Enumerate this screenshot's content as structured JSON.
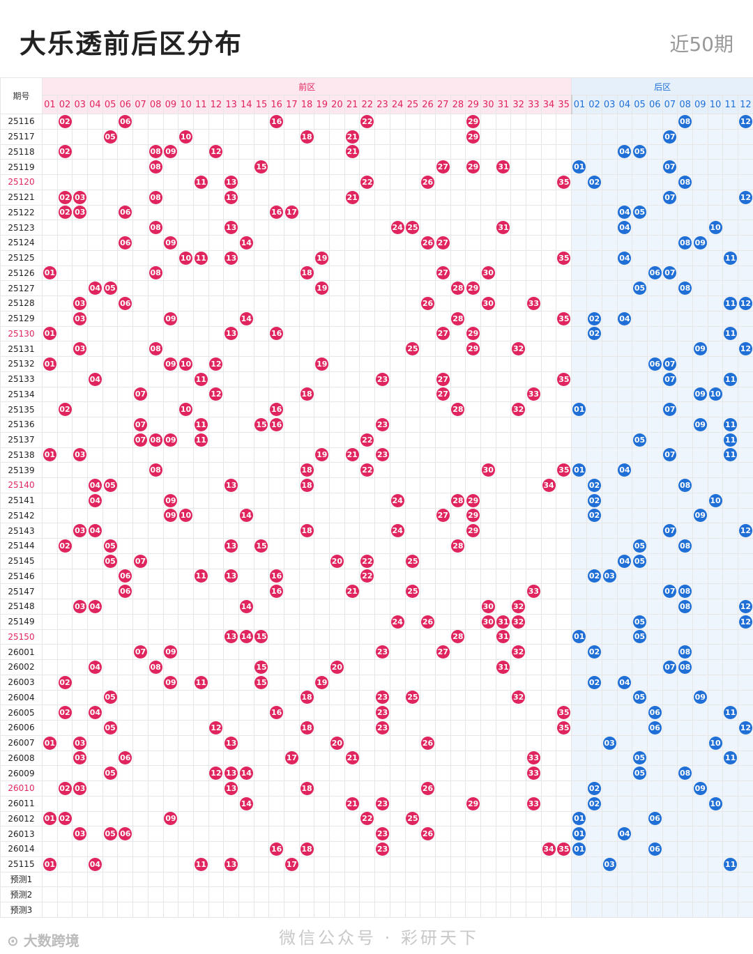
{
  "header": {
    "title": "大乐透前后区分布",
    "period": "近50期"
  },
  "table": {
    "issue_header": "期号",
    "front_label": "前区",
    "back_label": "后区",
    "front_nums": [
      "01",
      "02",
      "03",
      "04",
      "05",
      "06",
      "07",
      "08",
      "09",
      "10",
      "11",
      "12",
      "13",
      "14",
      "15",
      "16",
      "17",
      "18",
      "19",
      "20",
      "21",
      "22",
      "23",
      "24",
      "25",
      "26",
      "27",
      "28",
      "29",
      "30",
      "31",
      "32",
      "33",
      "34",
      "35"
    ],
    "back_nums": [
      "01",
      "02",
      "03",
      "04",
      "05",
      "06",
      "07",
      "08",
      "09",
      "10",
      "11",
      "12"
    ],
    "rows": [
      {
        "issue": "25116",
        "front": [
          2,
          6,
          16,
          22,
          29
        ],
        "back": [
          8,
          12
        ]
      },
      {
        "issue": "25117",
        "front": [
          5,
          10,
          18,
          21,
          29
        ],
        "back": [
          7
        ]
      },
      {
        "issue": "25118",
        "front": [
          2,
          8,
          9,
          12,
          21
        ],
        "back": [
          4,
          5
        ]
      },
      {
        "issue": "25119",
        "front": [
          8,
          15,
          27,
          29,
          31
        ],
        "back": [
          1,
          7
        ]
      },
      {
        "issue": "25120",
        "red": true,
        "front": [
          11,
          13,
          22,
          26,
          35
        ],
        "back": [
          2,
          8
        ]
      },
      {
        "issue": "25121",
        "front": [
          2,
          3,
          8,
          13,
          21
        ],
        "back": [
          7,
          12
        ]
      },
      {
        "issue": "25122",
        "front": [
          2,
          3,
          6,
          16,
          17
        ],
        "back": [
          4,
          5
        ]
      },
      {
        "issue": "25123",
        "front": [
          8,
          13,
          24,
          25,
          31
        ],
        "back": [
          4,
          10
        ]
      },
      {
        "issue": "25124",
        "front": [
          6,
          9,
          14,
          26,
          27
        ],
        "back": [
          8,
          9
        ]
      },
      {
        "issue": "25125",
        "front": [
          10,
          11,
          13,
          19,
          35
        ],
        "back": [
          4,
          11
        ]
      },
      {
        "issue": "25126",
        "front": [
          1,
          8,
          18,
          27,
          30
        ],
        "back": [
          6,
          7
        ]
      },
      {
        "issue": "25127",
        "front": [
          4,
          5,
          19,
          28,
          29
        ],
        "back": [
          5,
          8
        ]
      },
      {
        "issue": "25128",
        "front": [
          3,
          6,
          26,
          30,
          33
        ],
        "back": [
          11,
          12
        ]
      },
      {
        "issue": "25129",
        "front": [
          3,
          9,
          14,
          28,
          35
        ],
        "back": [
          2,
          4
        ]
      },
      {
        "issue": "25130",
        "red": true,
        "front": [
          1,
          13,
          16,
          27,
          29
        ],
        "back": [
          2,
          11
        ]
      },
      {
        "issue": "25131",
        "front": [
          3,
          8,
          25,
          29,
          32
        ],
        "back": [
          9,
          12
        ]
      },
      {
        "issue": "25132",
        "front": [
          1,
          9,
          10,
          12,
          19
        ],
        "back": [
          6,
          7
        ]
      },
      {
        "issue": "25133",
        "front": [
          4,
          11,
          23,
          27,
          35
        ],
        "back": [
          7,
          11
        ]
      },
      {
        "issue": "25134",
        "front": [
          7,
          12,
          18,
          27,
          33
        ],
        "back": [
          9,
          10
        ]
      },
      {
        "issue": "25135",
        "front": [
          2,
          10,
          16,
          28,
          32
        ],
        "back": [
          1,
          7
        ]
      },
      {
        "issue": "25136",
        "front": [
          7,
          11,
          15,
          16,
          23
        ],
        "back": [
          9,
          11
        ]
      },
      {
        "issue": "25137",
        "front": [
          7,
          8,
          9,
          11,
          22
        ],
        "back": [
          5,
          11
        ]
      },
      {
        "issue": "25138",
        "front": [
          1,
          3,
          19,
          21,
          23
        ],
        "back": [
          7,
          11
        ]
      },
      {
        "issue": "25139",
        "front": [
          8,
          18,
          22,
          30,
          35
        ],
        "back": [
          1,
          4
        ]
      },
      {
        "issue": "25140",
        "red": true,
        "front": [
          4,
          5,
          13,
          18,
          34
        ],
        "back": [
          2,
          8
        ]
      },
      {
        "issue": "25141",
        "front": [
          4,
          9,
          24,
          28,
          29
        ],
        "back": [
          2,
          10
        ]
      },
      {
        "issue": "25142",
        "front": [
          9,
          10,
          14,
          27,
          29
        ],
        "back": [
          2,
          9
        ]
      },
      {
        "issue": "25143",
        "front": [
          3,
          4,
          18,
          24,
          29
        ],
        "back": [
          7,
          12
        ]
      },
      {
        "issue": "25144",
        "front": [
          2,
          5,
          13,
          15,
          28
        ],
        "back": [
          5,
          8
        ]
      },
      {
        "issue": "25145",
        "front": [
          5,
          7,
          20,
          22,
          25
        ],
        "back": [
          4,
          5
        ]
      },
      {
        "issue": "25146",
        "front": [
          6,
          11,
          13,
          16,
          22
        ],
        "back": [
          2,
          3
        ]
      },
      {
        "issue": "25147",
        "front": [
          6,
          16,
          21,
          25,
          33
        ],
        "back": [
          7,
          8
        ]
      },
      {
        "issue": "25148",
        "front": [
          3,
          4,
          14,
          30,
          32
        ],
        "back": [
          8,
          12
        ]
      },
      {
        "issue": "25149",
        "front": [
          24,
          26,
          30,
          31,
          32
        ],
        "back": [
          5,
          12
        ]
      },
      {
        "issue": "25150",
        "red": true,
        "front": [
          13,
          14,
          15,
          28,
          31
        ],
        "back": [
          1,
          5
        ]
      },
      {
        "issue": "26001",
        "front": [
          7,
          9,
          23,
          27,
          32
        ],
        "back": [
          2,
          8
        ]
      },
      {
        "issue": "26002",
        "front": [
          4,
          8,
          15,
          20,
          31
        ],
        "back": [
          7,
          8
        ]
      },
      {
        "issue": "26003",
        "front": [
          2,
          9,
          11,
          15,
          19
        ],
        "back": [
          2,
          4
        ]
      },
      {
        "issue": "26004",
        "front": [
          5,
          18,
          23,
          25,
          32
        ],
        "back": [
          5,
          9
        ]
      },
      {
        "issue": "26005",
        "front": [
          2,
          4,
          16,
          23,
          35
        ],
        "back": [
          6,
          11
        ]
      },
      {
        "issue": "26006",
        "front": [
          5,
          12,
          18,
          23,
          35
        ],
        "back": [
          6,
          12
        ]
      },
      {
        "issue": "26007",
        "front": [
          1,
          3,
          13,
          20,
          26
        ],
        "back": [
          3,
          10
        ]
      },
      {
        "issue": "26008",
        "front": [
          3,
          6,
          17,
          21,
          33
        ],
        "back": [
          5,
          11
        ]
      },
      {
        "issue": "26009",
        "front": [
          5,
          12,
          13,
          14,
          33
        ],
        "back": [
          5,
          8
        ]
      },
      {
        "issue": "26010",
        "red": true,
        "front": [
          2,
          3,
          13,
          18,
          26
        ],
        "back": [
          2,
          9
        ]
      },
      {
        "issue": "26011",
        "front": [
          14,
          21,
          23,
          29,
          33
        ],
        "back": [
          2,
          10
        ]
      },
      {
        "issue": "26012",
        "front": [
          1,
          2,
          9,
          22,
          25
        ],
        "back": [
          1,
          6
        ]
      },
      {
        "issue": "26013",
        "front": [
          3,
          5,
          6,
          23,
          26
        ],
        "back": [
          1,
          4
        ]
      },
      {
        "issue": "26014",
        "front": [
          16,
          18,
          23,
          34,
          35
        ],
        "back": [
          1,
          6
        ]
      },
      {
        "issue": "25115",
        "front": [
          1,
          4,
          11,
          13,
          17
        ],
        "back": [
          3,
          11
        ]
      },
      {
        "issue": "预测1",
        "front": [],
        "back": []
      },
      {
        "issue": "预测2",
        "front": [],
        "back": []
      },
      {
        "issue": "预测3",
        "front": [],
        "back": []
      }
    ]
  },
  "footer": {
    "logo_text": "大数跨境",
    "watermark": "微信公众号 · 彩研天下"
  },
  "colors": {
    "front_ball": "#e0245e",
    "back_ball": "#1f6fd6",
    "front_header_bg": "#fde8ef",
    "back_header_bg": "#e6f0fb"
  }
}
